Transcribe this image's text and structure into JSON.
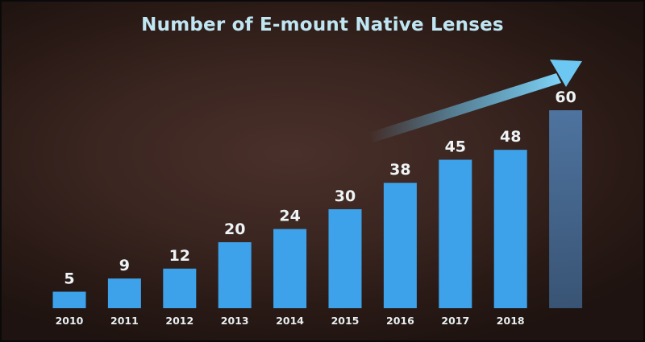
{
  "chart_data": {
    "type": "bar",
    "title": "Number of E-mount Native Lenses",
    "categories": [
      "2010",
      "2011",
      "2012",
      "2013",
      "2014",
      "2015",
      "2016",
      "2017",
      "2018",
      ""
    ],
    "values": [
      5,
      9,
      12,
      20,
      24,
      30,
      38,
      45,
      48,
      60
    ],
    "value_labels": [
      "5",
      "9",
      "12",
      "20",
      "24",
      "30",
      "38",
      "45",
      "48",
      "60"
    ],
    "projected_index": 9,
    "xlabel": "",
    "ylabel": "",
    "ylim": [
      0,
      60
    ],
    "grid": false,
    "legend": "none",
    "annotation": "growth-arrow",
    "colors": {
      "bar": "#3da2ea",
      "bar_projected": "#4a6e96",
      "arrow": "#6cc8f2",
      "title": "#bfe6f2",
      "label": "#eef4f6"
    }
  }
}
